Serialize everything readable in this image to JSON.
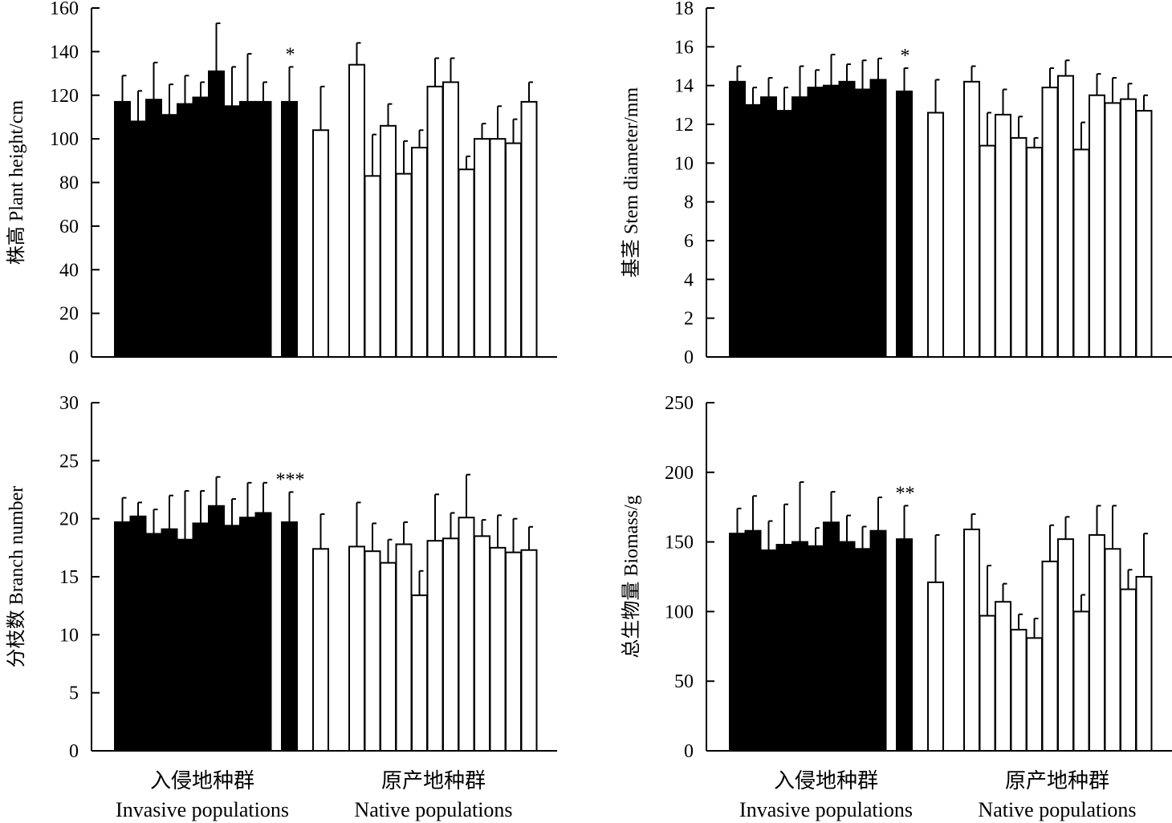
{
  "chart_data": [
    {
      "type": "bar",
      "id": "plant-height",
      "ylabel": "株高 Plant height/cm",
      "ylim": [
        0,
        160
      ],
      "yticks": [
        0,
        20,
        40,
        60,
        80,
        100,
        120,
        140,
        160
      ],
      "significance": "*",
      "invasive": {
        "values": [
          117,
          108,
          118,
          111,
          116,
          119,
          131,
          115,
          117,
          117
        ],
        "errors": [
          12,
          14,
          17,
          14,
          13,
          7,
          22,
          18,
          22,
          9
        ]
      },
      "invasive_mean": {
        "value": 117,
        "error": 16
      },
      "native_mean": {
        "value": 104,
        "error": 20
      },
      "native": {
        "values": [
          134,
          83,
          106,
          84,
          96,
          124,
          126,
          86,
          100,
          100,
          98,
          117
        ],
        "errors": [
          10,
          19,
          10,
          15,
          8,
          13,
          11,
          6,
          7,
          15,
          11,
          9
        ]
      }
    },
    {
      "type": "bar",
      "id": "stem-diameter",
      "ylabel": "基茎 Stem diameter/mm",
      "ylim": [
        0,
        18
      ],
      "yticks": [
        0,
        2,
        4,
        6,
        8,
        10,
        12,
        14,
        16,
        18
      ],
      "significance": "*",
      "invasive": {
        "values": [
          14.2,
          13.0,
          13.4,
          12.7,
          13.4,
          13.9,
          14.0,
          14.2,
          13.8,
          14.3
        ],
        "errors": [
          0.8,
          0.9,
          1.0,
          1.2,
          1.6,
          0.9,
          1.6,
          0.9,
          1.5,
          1.1
        ]
      },
      "invasive_mean": {
        "value": 13.7,
        "error": 1.2
      },
      "native_mean": {
        "value": 12.6,
        "error": 1.7
      },
      "native": {
        "values": [
          14.2,
          10.9,
          12.5,
          11.3,
          10.8,
          13.9,
          14.5,
          10.7,
          13.5,
          13.1,
          13.3,
          12.7
        ],
        "errors": [
          0.8,
          1.7,
          1.3,
          1.1,
          0.5,
          1.0,
          0.8,
          1.4,
          1.1,
          1.3,
          0.8,
          0.8
        ]
      }
    },
    {
      "type": "bar",
      "id": "branch-number",
      "ylabel": "分枝数 Branch number",
      "ylim": [
        0,
        30
      ],
      "yticks": [
        0,
        5,
        10,
        15,
        20,
        25,
        30
      ],
      "significance": "***",
      "invasive": {
        "values": [
          19.7,
          20.2,
          18.7,
          19.1,
          18.2,
          19.6,
          21.1,
          19.4,
          20.1,
          20.5
        ],
        "errors": [
          2.1,
          1.2,
          2.1,
          2.9,
          4.2,
          2.8,
          2.5,
          2.3,
          3.0,
          2.6
        ]
      },
      "invasive_mean": {
        "value": 19.7,
        "error": 2.6
      },
      "native_mean": {
        "value": 17.4,
        "error": 3.0
      },
      "native": {
        "values": [
          17.6,
          17.2,
          16.2,
          17.8,
          13.4,
          18.1,
          18.3,
          20.1,
          18.5,
          17.5,
          17.1,
          17.3
        ],
        "errors": [
          3.8,
          2.4,
          2.0,
          1.9,
          2.1,
          4.0,
          2.2,
          3.7,
          1.4,
          2.8,
          2.9,
          2.0
        ]
      }
    },
    {
      "type": "bar",
      "id": "biomass",
      "ylabel": "总生物量 Biomass/g",
      "ylim": [
        0,
        250
      ],
      "yticks": [
        0,
        50,
        100,
        150,
        200,
        250
      ],
      "significance": "**",
      "invasive": {
        "values": [
          156,
          158,
          144,
          148,
          150,
          147,
          164,
          150,
          145,
          158
        ],
        "errors": [
          18,
          25,
          21,
          29,
          43,
          13,
          22,
          19,
          16,
          24
        ]
      },
      "invasive_mean": {
        "value": 152,
        "error": 24
      },
      "native_mean": {
        "value": 121,
        "error": 34
      },
      "native": {
        "values": [
          159,
          97,
          107,
          87,
          81,
          136,
          152,
          100,
          155,
          145,
          116,
          125
        ],
        "errors": [
          11,
          36,
          13,
          11,
          14,
          26,
          16,
          12,
          21,
          31,
          14,
          31
        ]
      }
    }
  ],
  "group_labels": {
    "invasive_cn": "入侵地种群",
    "invasive_en": "Invasive populations",
    "native_cn": "原产地种群",
    "native_en": "Native populations"
  },
  "colors": {
    "invasive_fill": "#000000",
    "native_fill": "#ffffff",
    "stroke": "#000000"
  }
}
